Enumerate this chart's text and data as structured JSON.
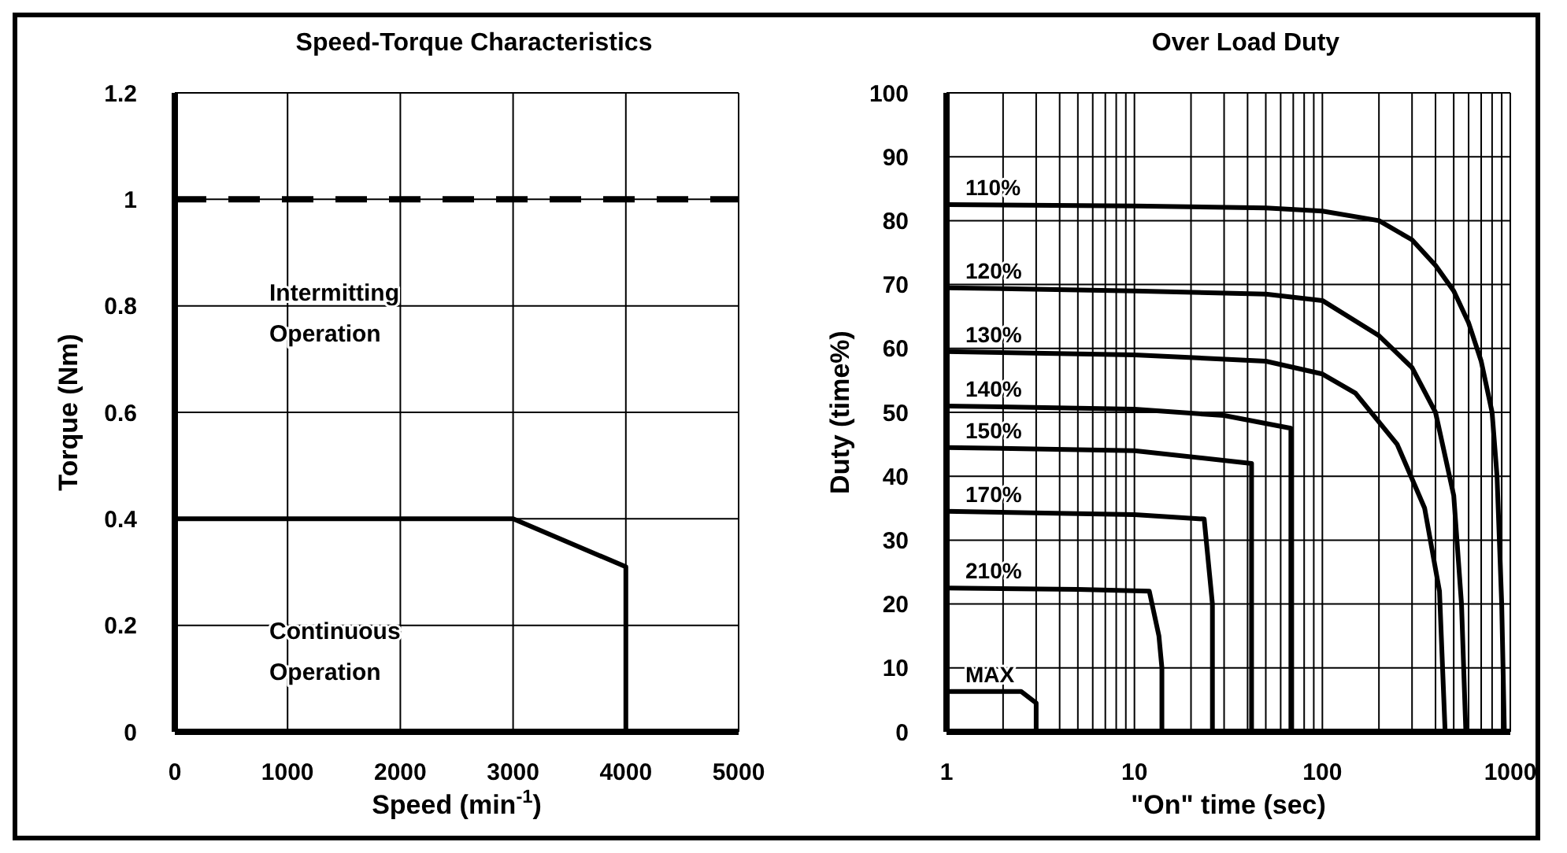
{
  "chart_data": [
    {
      "type": "line",
      "title": "Speed-Torque Characteristics",
      "xlabel": "Speed (min$^{-1}$)",
      "ylabel": "Torque (Nm)",
      "xlim": [
        0,
        5000
      ],
      "xticks": [
        0,
        1000,
        2000,
        3000,
        4000,
        5000
      ],
      "ylim": [
        0,
        1.2
      ],
      "yticks": [
        0,
        0.2,
        0.4,
        0.6,
        0.8,
        1,
        1.2
      ],
      "grid": true,
      "series": [
        {
          "color": "#000000",
          "x": [
            0,
            3000,
            4000,
            4000
          ],
          "values": [
            0.4,
            0.4,
            0.31,
            0
          ]
        }
      ],
      "ref_lines": [
        {
          "axis": "y",
          "value": 1,
          "color": "#000000",
          "line_style": "dashed"
        }
      ],
      "annotations": [
        "Intermitting Operation",
        "Continuous Operation"
      ]
    },
    {
      "type": "line",
      "title": "Over Load Duty",
      "xlabel": "\"On\" time (sec)",
      "ylabel": "Duty (time%)",
      "log": "x",
      "xlim": [
        1,
        1000
      ],
      "xticks": [
        1,
        {
          "value": 2,
          "label": null
        },
        {
          "value": 3,
          "label": null
        },
        {
          "value": 4,
          "label": null
        },
        {
          "value": 5,
          "label": null
        },
        {
          "value": 6,
          "label": null
        },
        {
          "value": 7,
          "label": null
        },
        {
          "value": 8,
          "label": null
        },
        {
          "value": 9,
          "label": null
        },
        10,
        {
          "value": 20,
          "label": null
        },
        {
          "value": 30,
          "label": null
        },
        {
          "value": 40,
          "label": null
        },
        {
          "value": 50,
          "label": null
        },
        {
          "value": 60,
          "label": null
        },
        {
          "value": 70,
          "label": null
        },
        {
          "value": 80,
          "label": null
        },
        {
          "value": 90,
          "label": null
        },
        100,
        {
          "value": 200,
          "label": null
        },
        {
          "value": 300,
          "label": null
        },
        {
          "value": 400,
          "label": null
        },
        {
          "value": 500,
          "label": null
        },
        {
          "value": 600,
          "label": null
        },
        {
          "value": 700,
          "label": null
        },
        {
          "value": 800,
          "label": null
        },
        {
          "value": 900,
          "label": null
        },
        1000
      ],
      "ylim": [
        0,
        100
      ],
      "yticks": [
        0,
        10,
        20,
        30,
        40,
        50,
        60,
        70,
        80,
        90,
        100
      ],
      "grid": true,
      "series": [
        {
          "name": "110%",
          "color": "#000000",
          "x": [
            1,
            10,
            50,
            100,
            200,
            300,
            400,
            500,
            600,
            700,
            800,
            850,
            900,
            930
          ],
          "values": [
            82.5,
            82.3,
            82,
            81.5,
            80,
            77,
            73,
            69,
            64,
            58,
            50,
            40,
            20,
            0
          ]
        },
        {
          "name": "120%",
          "color": "#000000",
          "x": [
            1,
            10,
            50,
            100,
            200,
            300,
            400,
            500,
            550,
            580
          ],
          "values": [
            69.5,
            69,
            68.5,
            67.5,
            62,
            57,
            50,
            37,
            20,
            0
          ]
        },
        {
          "name": "130%",
          "color": "#000000",
          "x": [
            1,
            10,
            50,
            100,
            150,
            250,
            350,
            420,
            450
          ],
          "values": [
            59.5,
            59,
            58,
            56,
            53,
            45,
            35,
            22,
            0
          ]
        },
        {
          "name": "140%",
          "color": "#000000",
          "x": [
            1,
            10,
            30,
            68,
            68
          ],
          "values": [
            51,
            50.5,
            49.5,
            47.5,
            0
          ]
        },
        {
          "name": "150%",
          "color": "#000000",
          "x": [
            1,
            10,
            42,
            42
          ],
          "values": [
            44.5,
            44,
            42,
            0
          ]
        },
        {
          "name": "170%",
          "color": "#000000",
          "x": [
            1,
            10,
            23.5,
            26,
            26
          ],
          "values": [
            34.5,
            34,
            33.3,
            20,
            0
          ]
        },
        {
          "name": "210%",
          "color": "#000000",
          "x": [
            1,
            5,
            12,
            13.5,
            14,
            14
          ],
          "values": [
            22.5,
            22.3,
            22,
            15,
            10,
            0
          ]
        },
        {
          "name": "MAX",
          "color": "#000000",
          "x": [
            1,
            2.5,
            3,
            3
          ],
          "values": [
            6.3,
            6.3,
            4.5,
            0
          ]
        }
      ]
    }
  ]
}
